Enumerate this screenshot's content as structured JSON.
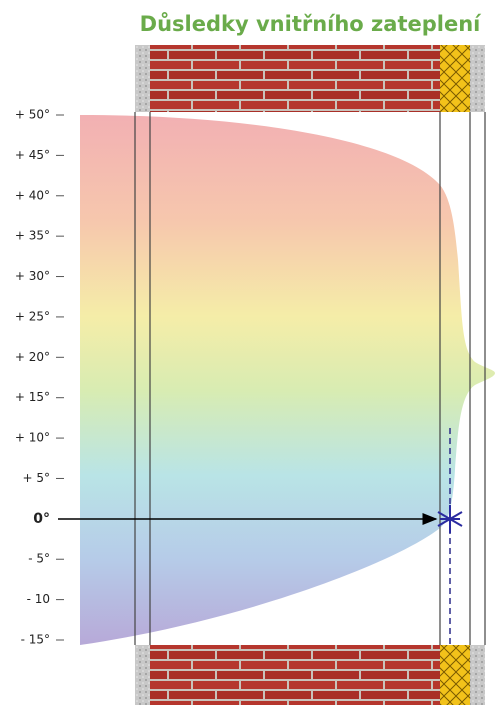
{
  "title": "Důsledky vnitřního zateplení",
  "scale": {
    "labels": [
      "+ 50°",
      "+ 45°",
      "+ 40°",
      "+ 35°",
      "+ 30°",
      "+ 25°",
      "+ 20°",
      "+ 15°",
      "+ 10°",
      "+ 5°",
      "0°",
      "- 5°",
      "- 10",
      "- 15°"
    ]
  }
}
